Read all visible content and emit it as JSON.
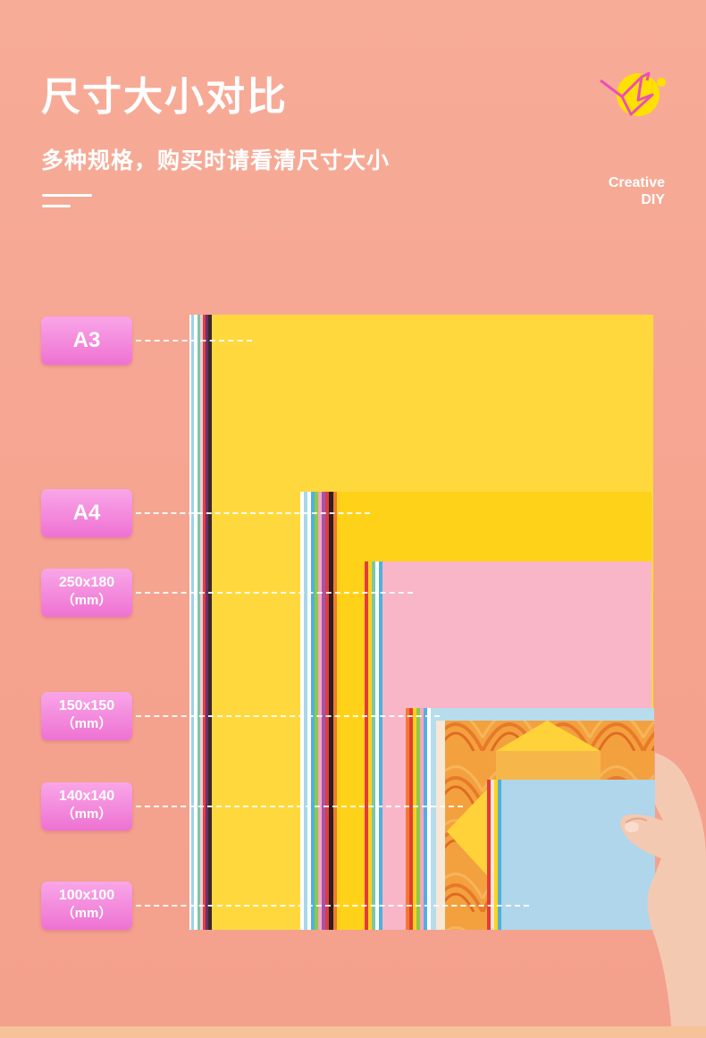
{
  "header": {
    "title": "尺寸大小对比",
    "subtitle": "多种规格，购买时请看清尺寸大小"
  },
  "brand": {
    "line1": "Creative",
    "line2": "DIY",
    "logo_icon": "paper-crane-icon"
  },
  "sizes": [
    {
      "id": "a3",
      "line1": "A3",
      "line2": ""
    },
    {
      "id": "a4",
      "line1": "A4",
      "line2": ""
    },
    {
      "id": "250x180",
      "line1": "250x180",
      "line2": "（mm）"
    },
    {
      "id": "150x150",
      "line1": "150x150",
      "line2": "（mm）"
    },
    {
      "id": "140x140",
      "line1": "140x140",
      "line2": "（mm）"
    },
    {
      "id": "100x100",
      "line1": "100x100",
      "line2": "（mm）"
    }
  ],
  "colors": {
    "background": "#F6A894",
    "tag": "#F08AD8",
    "yellow_a3": "#FFD83E",
    "yellow_a4": "#FFD21A",
    "pink": "#F8B6C8",
    "light_blue": "#A9D6EA",
    "orange_pattern": "#F2993A"
  }
}
